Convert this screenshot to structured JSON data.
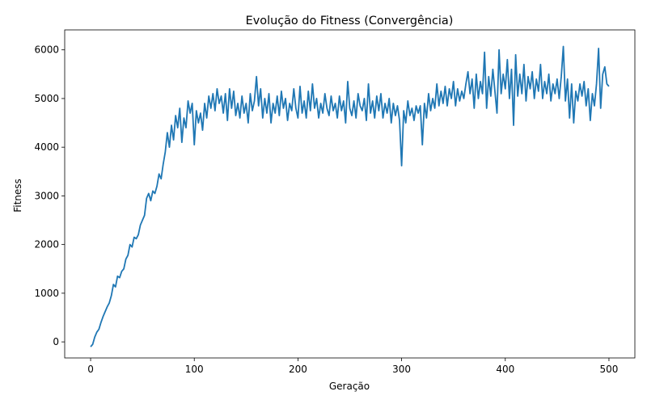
{
  "chart_data": {
    "type": "line",
    "title": "Evolução do Fitness (Convergência)",
    "xlabel": "Geração",
    "ylabel": "Fitness",
    "xlim": [
      -25,
      525
    ],
    "ylim": [
      -330,
      6410
    ],
    "xticks": [
      0,
      100,
      200,
      300,
      400,
      500
    ],
    "yticks": [
      0,
      1000,
      2000,
      3000,
      4000,
      5000,
      6000
    ],
    "grid": false,
    "legend": "none",
    "series": [
      {
        "color": "#1f77b4",
        "points": [
          [
            0,
            -100
          ],
          [
            2,
            -50
          ],
          [
            4,
            100
          ],
          [
            6,
            200
          ],
          [
            8,
            260
          ],
          [
            10,
            400
          ],
          [
            12,
            520
          ],
          [
            14,
            620
          ],
          [
            16,
            720
          ],
          [
            18,
            800
          ],
          [
            20,
            950
          ],
          [
            22,
            1180
          ],
          [
            24,
            1130
          ],
          [
            26,
            1350
          ],
          [
            28,
            1320
          ],
          [
            30,
            1450
          ],
          [
            32,
            1500
          ],
          [
            34,
            1700
          ],
          [
            36,
            1780
          ],
          [
            38,
            2000
          ],
          [
            40,
            1950
          ],
          [
            42,
            2150
          ],
          [
            44,
            2120
          ],
          [
            46,
            2200
          ],
          [
            48,
            2400
          ],
          [
            50,
            2500
          ],
          [
            52,
            2600
          ],
          [
            54,
            2950
          ],
          [
            56,
            3050
          ],
          [
            58,
            2900
          ],
          [
            60,
            3100
          ],
          [
            62,
            3050
          ],
          [
            64,
            3200
          ],
          [
            66,
            3450
          ],
          [
            68,
            3350
          ],
          [
            70,
            3650
          ],
          [
            72,
            3900
          ],
          [
            74,
            4300
          ],
          [
            76,
            4000
          ],
          [
            78,
            4450
          ],
          [
            80,
            4150
          ],
          [
            82,
            4650
          ],
          [
            84,
            4400
          ],
          [
            86,
            4800
          ],
          [
            88,
            4100
          ],
          [
            90,
            4600
          ],
          [
            92,
            4400
          ],
          [
            94,
            4950
          ],
          [
            96,
            4700
          ],
          [
            98,
            4900
          ],
          [
            100,
            4050
          ],
          [
            102,
            4750
          ],
          [
            104,
            4500
          ],
          [
            106,
            4700
          ],
          [
            108,
            4350
          ],
          [
            110,
            4900
          ],
          [
            112,
            4600
          ],
          [
            114,
            5050
          ],
          [
            116,
            4800
          ],
          [
            118,
            5100
          ],
          [
            120,
            4750
          ],
          [
            122,
            5200
          ],
          [
            124,
            4900
          ],
          [
            126,
            5050
          ],
          [
            128,
            4700
          ],
          [
            130,
            5100
          ],
          [
            132,
            4550
          ],
          [
            134,
            5200
          ],
          [
            136,
            4800
          ],
          [
            138,
            5150
          ],
          [
            140,
            4650
          ],
          [
            142,
            4900
          ],
          [
            144,
            4600
          ],
          [
            146,
            5050
          ],
          [
            148,
            4700
          ],
          [
            150,
            4900
          ],
          [
            152,
            4500
          ],
          [
            154,
            5100
          ],
          [
            156,
            4750
          ],
          [
            158,
            4950
          ],
          [
            160,
            5450
          ],
          [
            162,
            4850
          ],
          [
            164,
            5200
          ],
          [
            166,
            4600
          ],
          [
            168,
            5000
          ],
          [
            170,
            4700
          ],
          [
            172,
            5100
          ],
          [
            174,
            4500
          ],
          [
            176,
            4900
          ],
          [
            178,
            4700
          ],
          [
            180,
            5050
          ],
          [
            182,
            4650
          ],
          [
            184,
            5150
          ],
          [
            186,
            4800
          ],
          [
            188,
            5000
          ],
          [
            190,
            4550
          ],
          [
            192,
            4900
          ],
          [
            194,
            4750
          ],
          [
            196,
            5200
          ],
          [
            198,
            4800
          ],
          [
            200,
            4600
          ],
          [
            202,
            5250
          ],
          [
            204,
            4700
          ],
          [
            206,
            4950
          ],
          [
            208,
            4600
          ],
          [
            210,
            5150
          ],
          [
            212,
            4750
          ],
          [
            214,
            5300
          ],
          [
            216,
            4800
          ],
          [
            218,
            5000
          ],
          [
            220,
            4600
          ],
          [
            222,
            4900
          ],
          [
            224,
            4700
          ],
          [
            226,
            5100
          ],
          [
            228,
            4800
          ],
          [
            230,
            4650
          ],
          [
            232,
            5050
          ],
          [
            234,
            4750
          ],
          [
            236,
            4900
          ],
          [
            238,
            4600
          ],
          [
            240,
            5050
          ],
          [
            242,
            4750
          ],
          [
            244,
            4950
          ],
          [
            246,
            4500
          ],
          [
            248,
            5350
          ],
          [
            250,
            4800
          ],
          [
            252,
            4650
          ],
          [
            254,
            4950
          ],
          [
            256,
            4600
          ],
          [
            258,
            5100
          ],
          [
            260,
            4850
          ],
          [
            262,
            4750
          ],
          [
            264,
            5000
          ],
          [
            266,
            4550
          ],
          [
            268,
            5300
          ],
          [
            270,
            4700
          ],
          [
            272,
            4950
          ],
          [
            274,
            4600
          ],
          [
            276,
            5050
          ],
          [
            278,
            4750
          ],
          [
            280,
            5100
          ],
          [
            282,
            4600
          ],
          [
            284,
            4900
          ],
          [
            286,
            4700
          ],
          [
            288,
            5000
          ],
          [
            290,
            4500
          ],
          [
            292,
            4900
          ],
          [
            294,
            4650
          ],
          [
            296,
            4850
          ],
          [
            298,
            4550
          ],
          [
            300,
            3620
          ],
          [
            302,
            4750
          ],
          [
            304,
            4500
          ],
          [
            306,
            4950
          ],
          [
            308,
            4650
          ],
          [
            310,
            4800
          ],
          [
            312,
            4550
          ],
          [
            314,
            4850
          ],
          [
            316,
            4700
          ],
          [
            318,
            4850
          ],
          [
            320,
            4050
          ],
          [
            322,
            4900
          ],
          [
            324,
            4600
          ],
          [
            326,
            5100
          ],
          [
            328,
            4750
          ],
          [
            330,
            5000
          ],
          [
            332,
            4800
          ],
          [
            334,
            5300
          ],
          [
            336,
            4850
          ],
          [
            338,
            5150
          ],
          [
            340,
            4900
          ],
          [
            342,
            5250
          ],
          [
            344,
            4850
          ],
          [
            346,
            5200
          ],
          [
            348,
            5000
          ],
          [
            350,
            5350
          ],
          [
            352,
            4850
          ],
          [
            354,
            5200
          ],
          [
            356,
            4950
          ],
          [
            358,
            5150
          ],
          [
            360,
            5000
          ],
          [
            362,
            5300
          ],
          [
            364,
            5550
          ],
          [
            366,
            5100
          ],
          [
            368,
            5400
          ],
          [
            370,
            4800
          ],
          [
            372,
            5500
          ],
          [
            374,
            5000
          ],
          [
            376,
            5350
          ],
          [
            378,
            5100
          ],
          [
            380,
            5950
          ],
          [
            382,
            4800
          ],
          [
            384,
            5450
          ],
          [
            386,
            5050
          ],
          [
            388,
            5600
          ],
          [
            390,
            5150
          ],
          [
            392,
            4700
          ],
          [
            394,
            6000
          ],
          [
            396,
            5100
          ],
          [
            398,
            5500
          ],
          [
            400,
            5200
          ],
          [
            402,
            5800
          ],
          [
            404,
            5000
          ],
          [
            406,
            5600
          ],
          [
            408,
            4450
          ],
          [
            410,
            5900
          ],
          [
            412,
            5050
          ],
          [
            414,
            5500
          ],
          [
            416,
            5100
          ],
          [
            418,
            5700
          ],
          [
            420,
            4950
          ],
          [
            422,
            5450
          ],
          [
            424,
            5200
          ],
          [
            426,
            5550
          ],
          [
            428,
            5000
          ],
          [
            430,
            5400
          ],
          [
            432,
            5150
          ],
          [
            434,
            5700
          ],
          [
            436,
            5000
          ],
          [
            438,
            5350
          ],
          [
            440,
            5100
          ],
          [
            442,
            5500
          ],
          [
            444,
            4950
          ],
          [
            446,
            5300
          ],
          [
            448,
            5100
          ],
          [
            450,
            5400
          ],
          [
            452,
            5000
          ],
          [
            454,
            5450
          ],
          [
            456,
            6070
          ],
          [
            458,
            4950
          ],
          [
            460,
            5400
          ],
          [
            462,
            4600
          ],
          [
            464,
            5300
          ],
          [
            466,
            4500
          ],
          [
            468,
            5150
          ],
          [
            470,
            4950
          ],
          [
            472,
            5300
          ],
          [
            474,
            5050
          ],
          [
            476,
            5350
          ],
          [
            478,
            4850
          ],
          [
            480,
            5200
          ],
          [
            482,
            4550
          ],
          [
            484,
            5100
          ],
          [
            486,
            4850
          ],
          [
            488,
            5300
          ],
          [
            490,
            6030
          ],
          [
            492,
            4800
          ],
          [
            494,
            5500
          ],
          [
            496,
            5650
          ],
          [
            498,
            5300
          ],
          [
            500,
            5250
          ]
        ]
      }
    ]
  }
}
